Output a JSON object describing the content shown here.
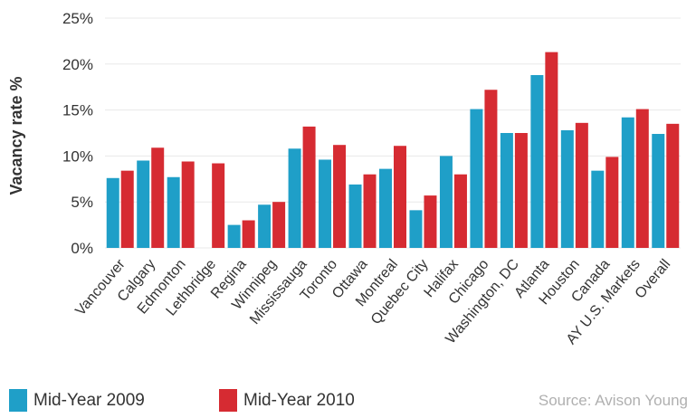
{
  "chart_data": {
    "type": "bar",
    "ylabel": "Vacancy rate %",
    "ylim": [
      0,
      25
    ],
    "yticks": [
      "0%",
      "5%",
      "10%",
      "15%",
      "20%",
      "25%"
    ],
    "grid": true,
    "legend_position": "bottom-left",
    "categories": [
      "Vancouver",
      "Calgary",
      "Edmonton",
      "Lethbridge",
      "Regina",
      "Winnipeg",
      "Mississauga",
      "Toronto",
      "Ottawa",
      "Montreal",
      "Quebec City",
      "Halifax",
      "Chicago",
      "Washington, DC",
      "Atlanta",
      "Houston",
      "Canada",
      "AY U.S. Markets",
      "Overall"
    ],
    "series": [
      {
        "name": "Mid-Year 2009",
        "color": "#1f9fc8",
        "values": [
          7.6,
          9.5,
          7.7,
          null,
          2.5,
          4.7,
          10.8,
          9.6,
          6.9,
          8.6,
          4.1,
          10.0,
          15.1,
          12.5,
          18.8,
          12.8,
          8.4,
          14.2,
          12.4
        ]
      },
      {
        "name": "Mid-Year 2010",
        "color": "#d62b32",
        "values": [
          8.4,
          10.9,
          9.4,
          9.2,
          3.0,
          5.0,
          13.2,
          11.2,
          8.0,
          11.1,
          5.7,
          8.0,
          17.2,
          12.5,
          21.3,
          13.6,
          9.9,
          15.1,
          13.5
        ]
      }
    ]
  },
  "source": "Source: Avison Young"
}
